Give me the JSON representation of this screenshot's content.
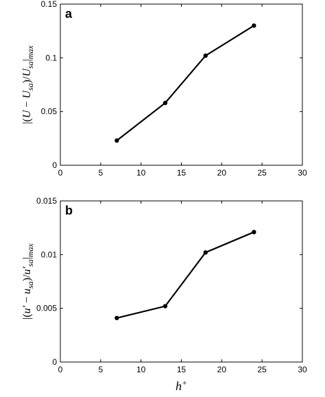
{
  "chart_data": [
    {
      "type": "line",
      "panel": "a",
      "ylabel_parts": [
        {
          "t": "|(",
          "it": false
        },
        {
          "t": "U",
          "it": true
        },
        {
          "t": " − ",
          "it": false
        },
        {
          "t": "U",
          "it": true
        },
        {
          "t": "sa",
          "it": true,
          "sub": true
        },
        {
          "t": ")/",
          "it": false
        },
        {
          "t": "U",
          "it": true
        },
        {
          "t": "sa",
          "it": true,
          "sub": true
        },
        {
          "t": "|",
          "it": false
        },
        {
          "t": "max",
          "it": true,
          "sub": true
        }
      ],
      "xlabel": "",
      "xlim": [
        0,
        30
      ],
      "ylim": [
        0,
        0.15
      ],
      "xticks": [
        0,
        5,
        10,
        15,
        20,
        25,
        30
      ],
      "yticks": [
        0,
        0.05,
        0.1,
        0.15
      ],
      "ytick_labels": [
        "0",
        "0.05",
        "0.1",
        "0.15"
      ],
      "series": [
        {
          "x": [
            7,
            13,
            18,
            24
          ],
          "values": [
            0.023,
            0.058,
            0.102,
            0.13
          ]
        }
      ]
    },
    {
      "type": "line",
      "panel": "b",
      "ylabel_parts": [
        {
          "t": "|(",
          "it": false
        },
        {
          "t": "u′",
          "it": true
        },
        {
          "t": " − ",
          "it": false
        },
        {
          "t": "u",
          "it": true
        },
        {
          "t": "sa",
          "it": true,
          "sub": true
        },
        {
          "t": ")/",
          "it": false
        },
        {
          "t": "u′",
          "it": true
        },
        {
          "t": "sa",
          "it": true,
          "sub": true
        },
        {
          "t": "|",
          "it": false
        },
        {
          "t": "max",
          "it": true,
          "sub": true
        }
      ],
      "xlabel": "h+",
      "xlim": [
        0,
        30
      ],
      "ylim": [
        0,
        0.015
      ],
      "xticks": [
        0,
        5,
        10,
        15,
        20,
        25,
        30
      ],
      "yticks": [
        0,
        0.005,
        0.01,
        0.015
      ],
      "ytick_labels": [
        "0",
        "0.005",
        "0.01",
        "0.015"
      ],
      "series": [
        {
          "x": [
            7,
            13,
            18,
            24
          ],
          "values": [
            0.0041,
            0.0052,
            0.0102,
            0.0121
          ]
        }
      ]
    }
  ]
}
